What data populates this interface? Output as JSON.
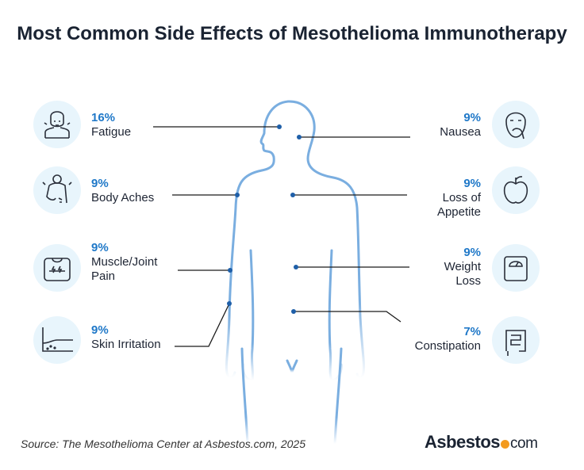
{
  "title": "Most Common Side Effects of Mesothelioma Immunotherapy",
  "colors": {
    "accent": "#1f78c8",
    "body_outline": "#7aaee0",
    "icon_bg": "#e8f5fc"
  },
  "left_items": [
    {
      "percent": "16%",
      "label": "Fatigue",
      "icon": "tired-person-icon"
    },
    {
      "percent": "9%",
      "label": "Body Aches",
      "icon": "back-pain-icon"
    },
    {
      "percent": "9%",
      "label": "Muscle/Joint Pain",
      "icon": "muscle-pain-icon"
    },
    {
      "percent": "9%",
      "label": "Skin Irritation",
      "icon": "skin-rash-icon"
    }
  ],
  "right_items": [
    {
      "percent": "9%",
      "label": "Nausea",
      "icon": "nauseous-face-icon"
    },
    {
      "percent": "9%",
      "label": "Loss of Appetite",
      "icon": "apple-icon"
    },
    {
      "percent": "9%",
      "label": "Weight Loss",
      "icon": "scale-icon"
    },
    {
      "percent": "7%",
      "label": "Constipation",
      "icon": "intestines-icon"
    }
  ],
  "source": "Source: The Mesothelioma Center at Asbestos.com, 2025",
  "logo": {
    "name": "Asbestos",
    "suffix": "com"
  }
}
